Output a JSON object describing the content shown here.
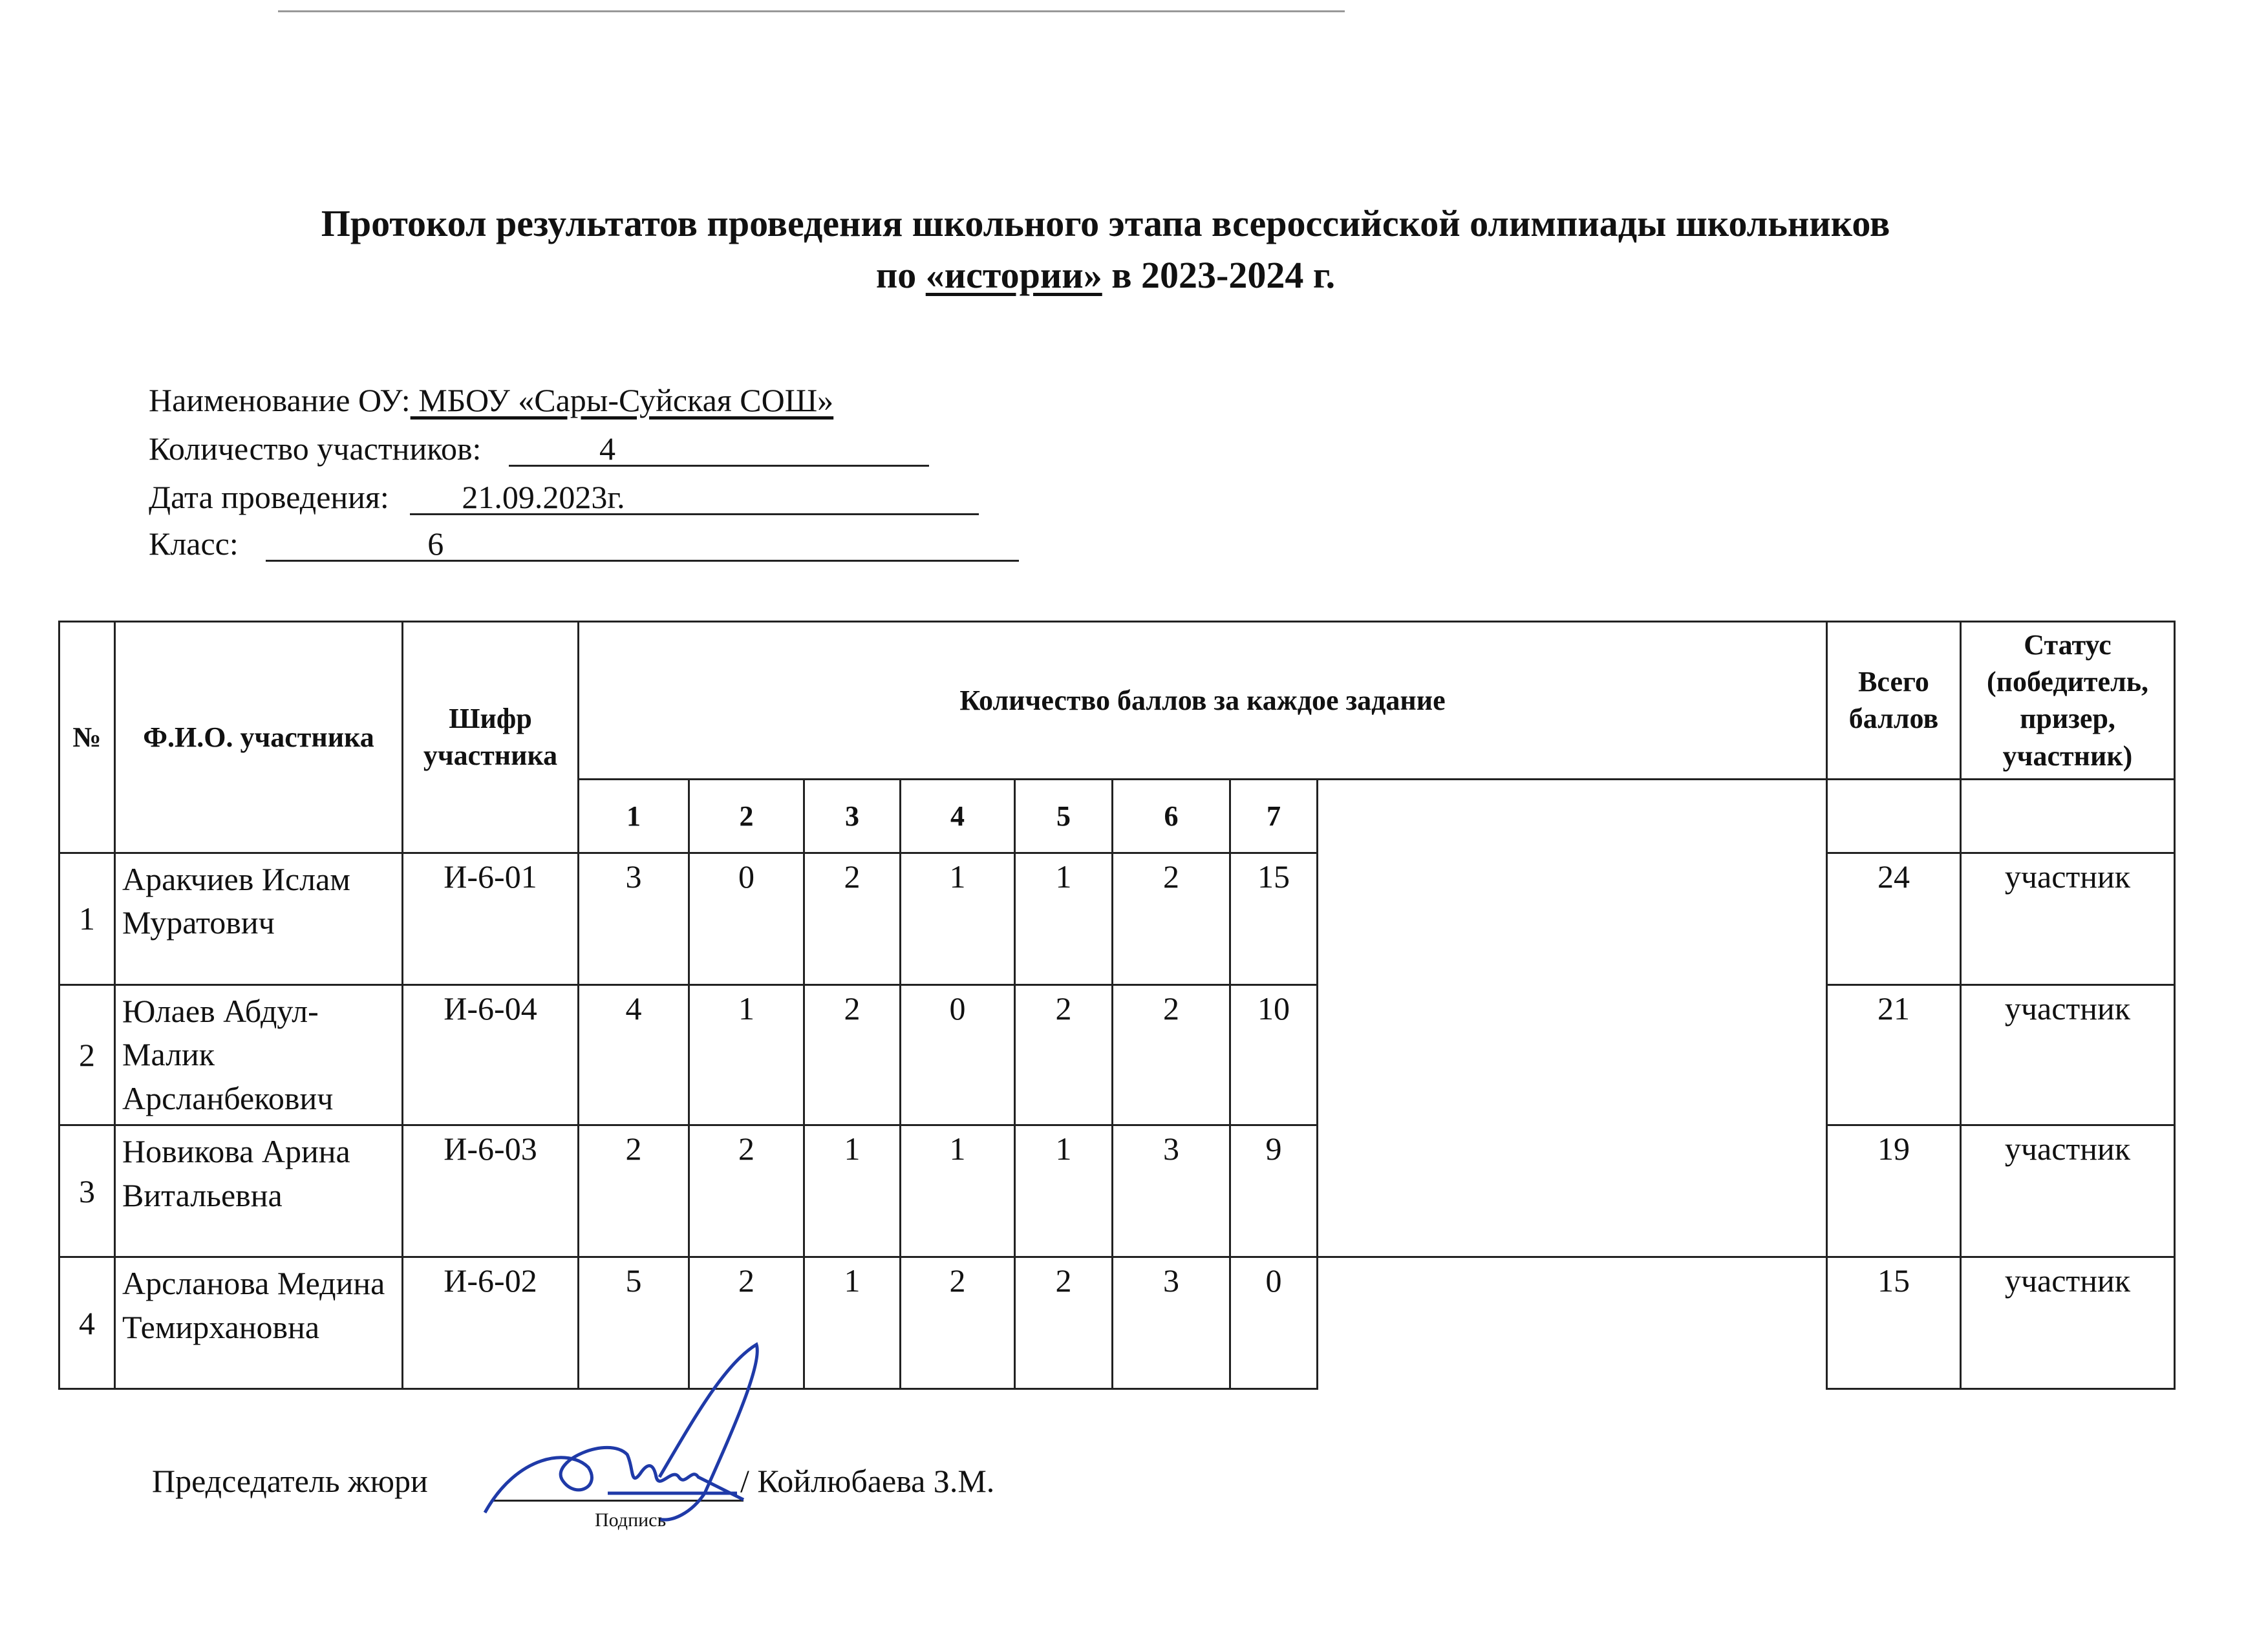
{
  "title": {
    "line1": "Протокол результатов проведения школьного этапа всероссийской олимпиады школьников",
    "line2_prefix": "по ",
    "subject": "«истории»",
    "line2_suffix": " в 2023-2024 г."
  },
  "info": {
    "school_label": "Наименование ОУ:",
    "school_value": " МБОУ «Сары-Суйская СОШ»",
    "count_label": "Количество участников:",
    "count_value": "4",
    "date_label": "Дата проведения:",
    "date_value": "21.09.2023г.",
    "class_label": "Класс:",
    "class_value": "6"
  },
  "table": {
    "headers": {
      "num": "№",
      "name": "Ф.И.О. участника",
      "code": "Шифр участника",
      "scores": "Количество баллов за каждое задание",
      "total": "Всего баллов",
      "status": "Статус (победитель, призер, участник)"
    },
    "tasks": [
      "1",
      "2",
      "3",
      "4",
      "5",
      "6",
      "7"
    ],
    "rows": [
      {
        "num": "1",
        "name": "Аракчиев Ислам Муратович",
        "code": "И-6-01",
        "scores": [
          "3",
          "0",
          "2",
          "1",
          "1",
          "2",
          "15"
        ],
        "total": "24",
        "status": "участник"
      },
      {
        "num": "2",
        "name": "Юлаев Абдул-Малик Арсланбекович",
        "code": "И-6-04",
        "scores": [
          "4",
          "1",
          "2",
          "0",
          "2",
          "2",
          "10"
        ],
        "total": "21",
        "status": "участник"
      },
      {
        "num": "3",
        "name": "Новикова Арина Витальевна",
        "code": "И-6-03",
        "scores": [
          "2",
          "2",
          "1",
          "1",
          "1",
          "3",
          "9"
        ],
        "total": "19",
        "status": "участник"
      },
      {
        "num": "4",
        "name": "Арсланова Медина Темирхановна",
        "code": "И-6-02",
        "scores": [
          "5",
          "2",
          "1",
          "2",
          "2",
          "3",
          "0"
        ],
        "total": "15",
        "status": "участник"
      }
    ]
  },
  "footer": {
    "chair_label": "Председатель жюри",
    "signature_caption": "Подпись",
    "chair_name": "/  Койлюбаева З.М."
  },
  "colors": {
    "ink": "#111111",
    "signature": "#1f3aa8"
  }
}
